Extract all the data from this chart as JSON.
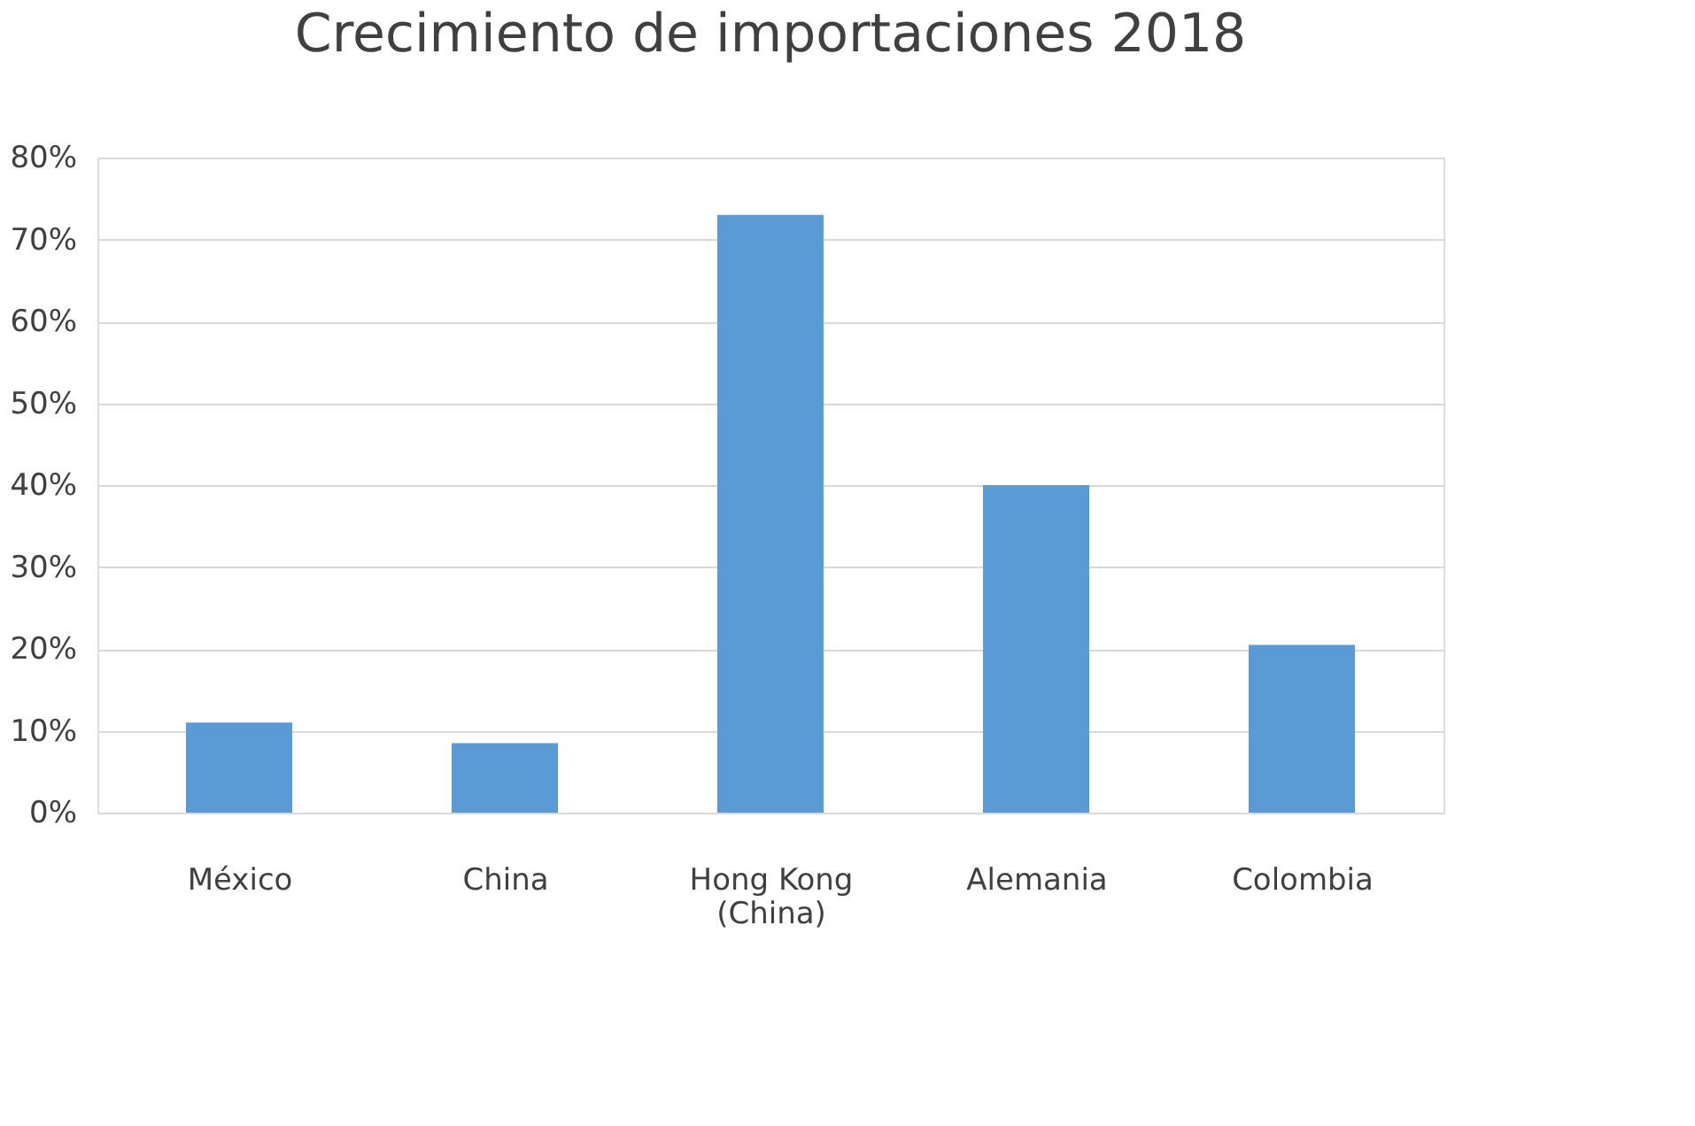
{
  "chart_data": {
    "type": "bar",
    "title": "Crecimiento de importaciones 2018",
    "categories": [
      "México",
      "China",
      "Hong Kong\n(China)",
      "Alemania",
      "Colombia"
    ],
    "values": [
      11,
      8.5,
      73,
      40,
      20.5
    ],
    "color": "#5b9bd5",
    "ylim": [
      0,
      80
    ],
    "yticks": [
      {
        "value": 0,
        "label": "0%"
      },
      {
        "value": 10,
        "label": "10%"
      },
      {
        "value": 20,
        "label": "20%"
      },
      {
        "value": 30,
        "label": "30%"
      },
      {
        "value": 40,
        "label": "40%"
      },
      {
        "value": 50,
        "label": "50%"
      },
      {
        "value": 60,
        "label": "60%"
      },
      {
        "value": 70,
        "label": "70%"
      },
      {
        "value": 80,
        "label": "80%"
      }
    ],
    "grid": "y"
  }
}
